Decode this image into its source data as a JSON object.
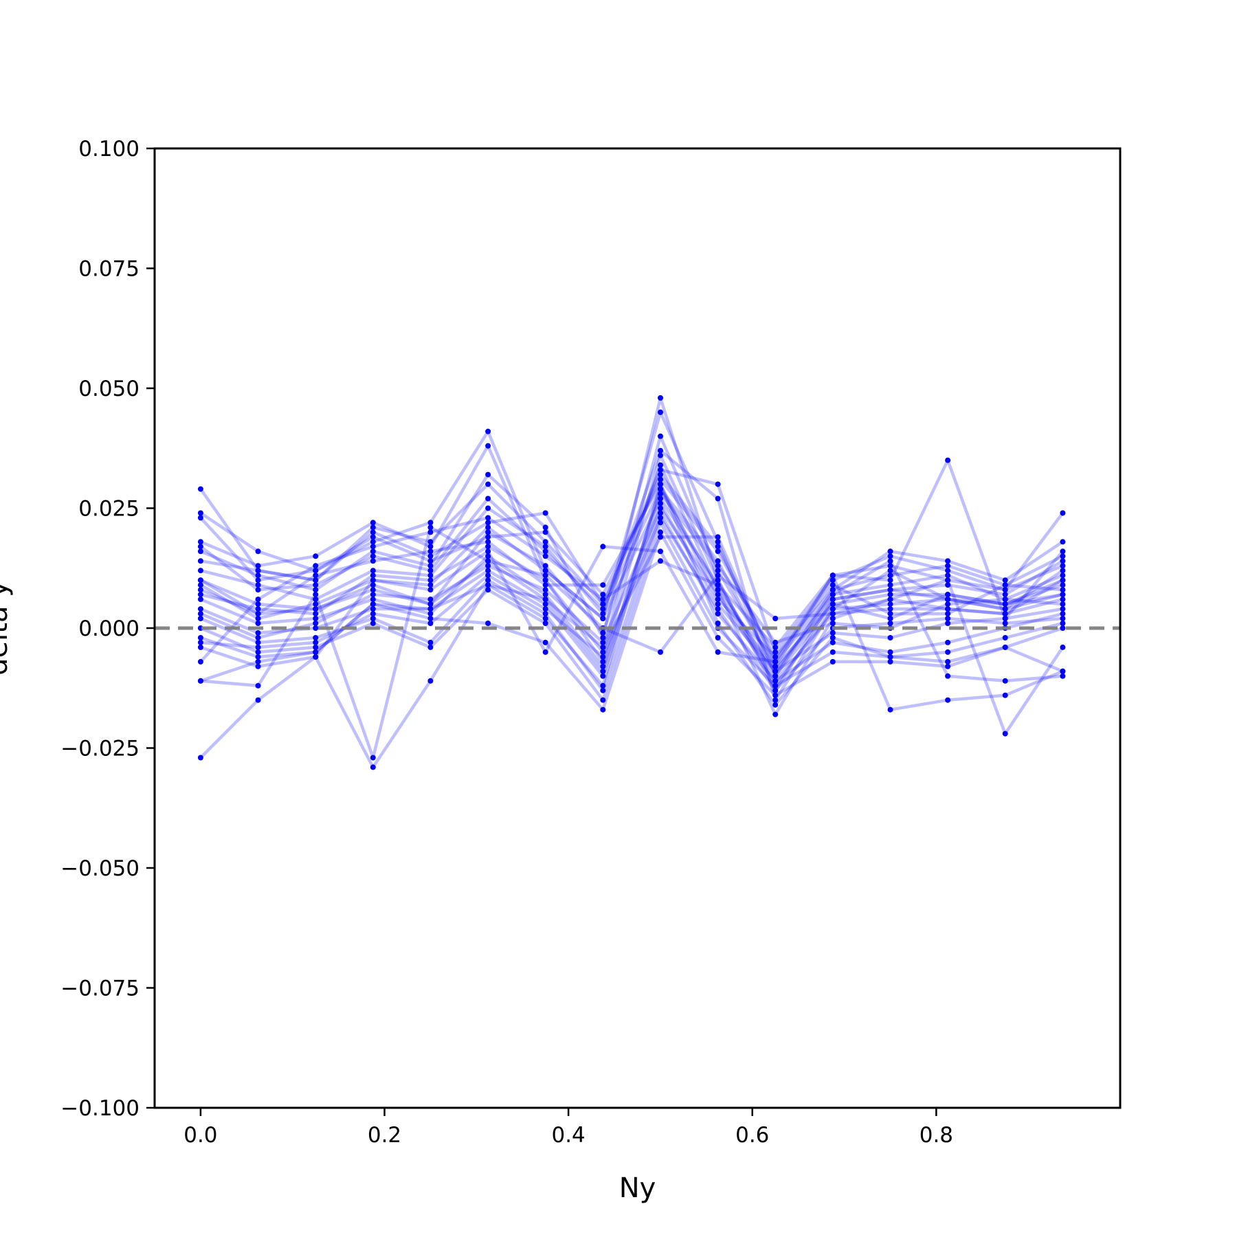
{
  "chart_data": {
    "type": "line",
    "title": "",
    "xlabel": "Ny",
    "ylabel": "delta y",
    "xlim": [
      -0.05,
      1.0
    ],
    "ylim": [
      -0.1,
      0.1
    ],
    "xticks": [
      0.0,
      0.2,
      0.4,
      0.6,
      0.8
    ],
    "xtick_labels": [
      "0.0",
      "0.2",
      "0.4",
      "0.6",
      "0.8"
    ],
    "yticks": [
      0.1,
      0.075,
      0.05,
      0.025,
      0.0,
      -0.025,
      -0.05,
      -0.075,
      -0.1
    ],
    "ytick_labels": [
      "0.100",
      "0.075",
      "0.050",
      "0.025",
      "0.000",
      "−0.025",
      "−0.050",
      "−0.075",
      "−0.100"
    ],
    "grid": false,
    "reference_line": {
      "y": 0.0,
      "style": "dashed",
      "color": "#808080"
    },
    "series_color": "#0000ff",
    "x": [
      0.0,
      0.0625,
      0.125,
      0.1875,
      0.25,
      0.3125,
      0.375,
      0.4375,
      0.5,
      0.5625,
      0.625,
      0.6875,
      0.75,
      0.8125,
      0.875,
      0.9375
    ],
    "series": [
      {
        "values": [
          0.029,
          0.012,
          0.01,
          0.02,
          0.015,
          0.022,
          0.024,
          0.005,
          0.033,
          0.03,
          -0.005,
          0.01,
          0.015,
          0.012,
          0.008,
          0.024
        ]
      },
      {
        "values": [
          0.024,
          0.016,
          0.012,
          0.018,
          0.022,
          0.041,
          0.012,
          0.002,
          0.045,
          0.018,
          -0.01,
          0.008,
          0.016,
          0.014,
          0.01,
          0.018
        ]
      },
      {
        "values": [
          0.018,
          0.013,
          0.015,
          0.022,
          0.017,
          0.038,
          0.01,
          -0.005,
          0.04,
          0.012,
          -0.008,
          0.011,
          0.01,
          0.035,
          0.002,
          0.016
        ]
      },
      {
        "values": [
          0.016,
          0.011,
          0.008,
          0.016,
          0.013,
          0.032,
          0.021,
          -0.002,
          0.048,
          0.01,
          -0.013,
          0.006,
          0.008,
          0.009,
          0.007,
          0.014
        ]
      },
      {
        "values": [
          0.012,
          0.009,
          0.006,
          0.012,
          0.011,
          0.025,
          0.017,
          0.003,
          0.037,
          0.027,
          -0.015,
          0.004,
          0.012,
          0.006,
          0.004,
          0.012
        ]
      },
      {
        "values": [
          0.01,
          0.005,
          0.004,
          0.008,
          0.005,
          0.02,
          0.013,
          -0.001,
          0.034,
          0.008,
          -0.018,
          0.002,
          0.006,
          0.004,
          0.003,
          0.01
        ]
      },
      {
        "values": [
          0.008,
          0.003,
          0.011,
          0.014,
          0.016,
          0.018,
          0.009,
          0.009,
          0.03,
          0.006,
          -0.006,
          0.009,
          0.003,
          0.003,
          0.009,
          0.008
        ]
      },
      {
        "values": [
          0.006,
          0.001,
          0.002,
          0.006,
          0.003,
          0.015,
          0.007,
          -0.008,
          0.028,
          0.013,
          -0.003,
          0.001,
          0.0,
          0.005,
          0.006,
          0.005
        ]
      },
      {
        "values": [
          0.004,
          -0.001,
          0.0,
          0.004,
          0.004,
          0.012,
          0.005,
          -0.01,
          0.026,
          0.005,
          -0.009,
          -0.001,
          -0.002,
          0.001,
          0.002,
          0.004
        ]
      },
      {
        "values": [
          0.002,
          -0.003,
          -0.002,
          0.002,
          -0.003,
          0.01,
          0.003,
          -0.013,
          0.024,
          0.003,
          -0.011,
          -0.003,
          -0.005,
          -0.003,
          0.0,
          0.003
        ]
      },
      {
        "values": [
          0.0,
          -0.005,
          -0.004,
          0.001,
          -0.004,
          0.008,
          0.001,
          -0.015,
          0.022,
          0.0,
          -0.012,
          -0.005,
          -0.006,
          -0.005,
          -0.002,
          0.001
        ]
      },
      {
        "values": [
          -0.002,
          -0.006,
          -0.005,
          0.005,
          0.002,
          0.001,
          -0.003,
          -0.017,
          0.02,
          -0.002,
          -0.014,
          -0.007,
          -0.007,
          -0.008,
          -0.004,
          0.0
        ]
      },
      {
        "values": [
          -0.004,
          -0.008,
          -0.006,
          0.01,
          0.008,
          0.016,
          -0.005,
          0.017,
          0.016,
          -0.005,
          -0.007,
          0.007,
          0.014,
          -0.01,
          -0.011,
          -0.01
        ]
      },
      {
        "values": [
          -0.007,
          0.006,
          0.013,
          0.017,
          0.02,
          0.023,
          0.015,
          0.006,
          0.014,
          0.009,
          -0.004,
          0.011,
          -0.017,
          -0.015,
          -0.014,
          -0.009
        ]
      },
      {
        "values": [
          -0.011,
          -0.012,
          0.007,
          -0.027,
          0.021,
          0.014,
          0.011,
          0.0,
          -0.005,
          0.011,
          0.002,
          0.003,
          0.006,
          0.01,
          -0.022,
          -0.004
        ]
      },
      {
        "values": [
          -0.027,
          -0.015,
          -0.006,
          -0.029,
          -0.011,
          0.009,
          0.006,
          -0.004,
          0.019,
          0.019,
          -0.008,
          0.005,
          0.002,
          0.007,
          0.005,
          0.007
        ]
      },
      {
        "values": [
          0.023,
          0.01,
          0.012,
          0.019,
          0.014,
          0.019,
          0.02,
          0.007,
          0.031,
          0.016,
          -0.006,
          0.008,
          0.011,
          0.013,
          0.009,
          0.015
        ]
      },
      {
        "values": [
          0.017,
          0.008,
          0.009,
          0.015,
          0.012,
          0.027,
          0.016,
          0.004,
          0.029,
          0.014,
          -0.009,
          0.007,
          0.009,
          0.011,
          0.006,
          0.011
        ]
      },
      {
        "values": [
          0.009,
          0.002,
          0.005,
          0.01,
          0.009,
          0.021,
          0.012,
          0.002,
          0.027,
          0.009,
          -0.01,
          0.005,
          0.007,
          0.007,
          0.005,
          0.009
        ]
      },
      {
        "values": [
          0.003,
          -0.002,
          0.001,
          0.007,
          0.006,
          0.013,
          0.008,
          -0.003,
          0.025,
          0.007,
          -0.011,
          0.003,
          0.004,
          0.004,
          0.003,
          0.006
        ]
      },
      {
        "values": [
          -0.003,
          -0.004,
          -0.003,
          0.003,
          0.001,
          0.011,
          0.004,
          -0.006,
          0.023,
          0.004,
          -0.013,
          0.0,
          0.001,
          0.002,
          0.001,
          0.002
        ]
      },
      {
        "values": [
          0.014,
          0.012,
          0.01,
          0.021,
          0.018,
          0.03,
          0.018,
          0.005,
          0.032,
          0.017,
          -0.007,
          0.011,
          0.013,
          0.01,
          0.008,
          0.013
        ]
      },
      {
        "values": [
          0.007,
          0.004,
          0.003,
          0.011,
          0.01,
          0.017,
          0.01,
          -0.007,
          0.036,
          0.01,
          -0.012,
          0.004,
          0.005,
          0.006,
          0.004,
          0.007
        ]
      },
      {
        "values": [
          -0.011,
          -0.007,
          -0.005,
          0.005,
          0.004,
          0.009,
          0.002,
          -0.012,
          0.03,
          0.001,
          -0.016,
          -0.002,
          -0.006,
          -0.007,
          -0.004,
          -0.009
        ]
      },
      {
        "values": [
          0.01,
          0.003,
          0.004,
          0.009,
          0.005,
          0.014,
          0.006,
          -0.009,
          0.029,
          0.008,
          -0.009,
          0.006,
          0.008,
          0.006,
          0.005,
          0.01
        ]
      }
    ]
  }
}
